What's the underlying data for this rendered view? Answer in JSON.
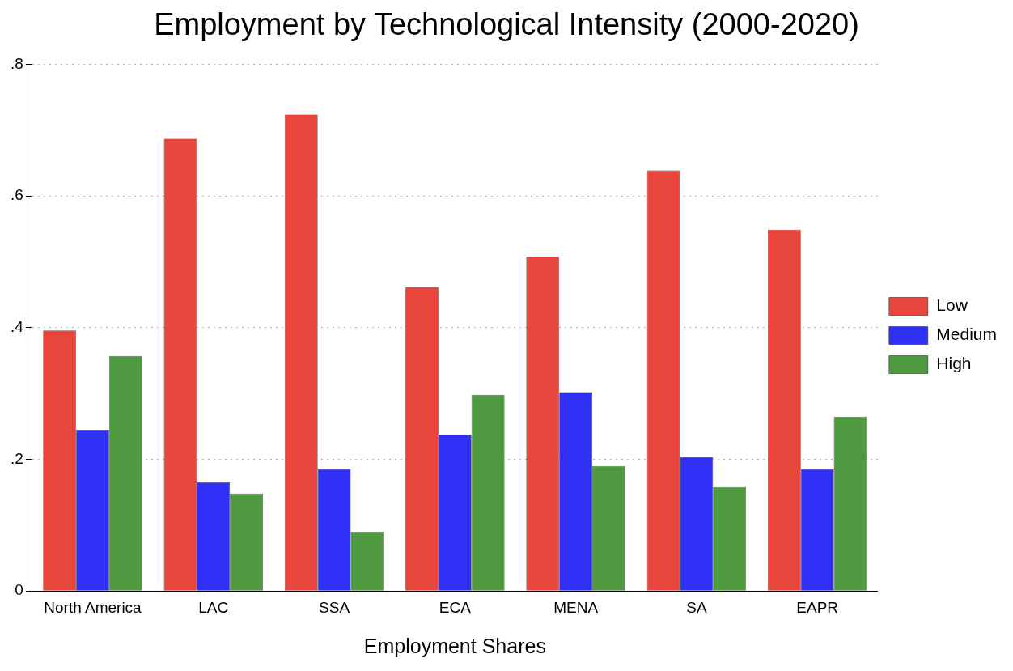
{
  "chart_data": {
    "type": "bar",
    "title": "Employment by Technological Intensity (2000-2020)",
    "xlabel": "Employment Shares",
    "categories": [
      "North America",
      "LAC",
      "SSA",
      "ECA",
      "MENA",
      "SA",
      "EAPR"
    ],
    "series": [
      {
        "name": "Low",
        "color": "#e8453c",
        "values": [
          0.396,
          0.687,
          0.724,
          0.462,
          0.508,
          0.639,
          0.549
        ]
      },
      {
        "name": "Medium",
        "color": "#2f2ff5",
        "values": [
          0.245,
          0.165,
          0.185,
          0.238,
          0.302,
          0.203,
          0.185
        ]
      },
      {
        "name": "High",
        "color": "#4f9a40",
        "values": [
          0.357,
          0.148,
          0.09,
          0.298,
          0.19,
          0.158,
          0.265
        ]
      }
    ],
    "ylim": [
      0,
      0.8
    ],
    "yticks": [
      {
        "value": 0,
        "label": "0"
      },
      {
        "value": 0.2,
        "label": ".2"
      },
      {
        "value": 0.4,
        "label": ".4"
      },
      {
        "value": 0.6,
        "label": ".6"
      },
      {
        "value": 0.8,
        "label": ".8"
      }
    ],
    "grid": "y",
    "legend": "right"
  }
}
